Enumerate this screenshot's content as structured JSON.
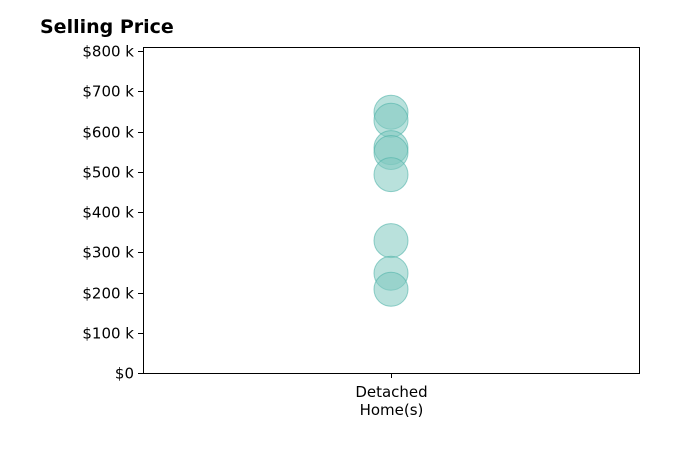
{
  "chart_data": {
    "type": "scatter",
    "title": "Selling Price",
    "xlabel": "",
    "ylabel": "",
    "categories": [
      "Detached\nHome(s)"
    ],
    "ylim": [
      0,
      810000
    ],
    "y_ticks": [
      0,
      100000,
      200000,
      300000,
      400000,
      500000,
      600000,
      700000,
      800000
    ],
    "y_tick_labels": [
      "$0",
      "$100 k",
      "$200 k",
      "$300 k",
      "$400 k",
      "$500 k",
      "$600 k",
      "$700 k",
      "$800 k"
    ],
    "series": [
      {
        "category": "Detached\nHome(s)",
        "values": [
          648000,
          628000,
          560000,
          548000,
          493000,
          329000,
          248000,
          208000
        ]
      }
    ],
    "grid": false,
    "legend": "none",
    "colors": {
      "marker_fill": "#7fc8c0",
      "marker_stroke": "#4fb3a9",
      "axis": "#000000"
    }
  }
}
